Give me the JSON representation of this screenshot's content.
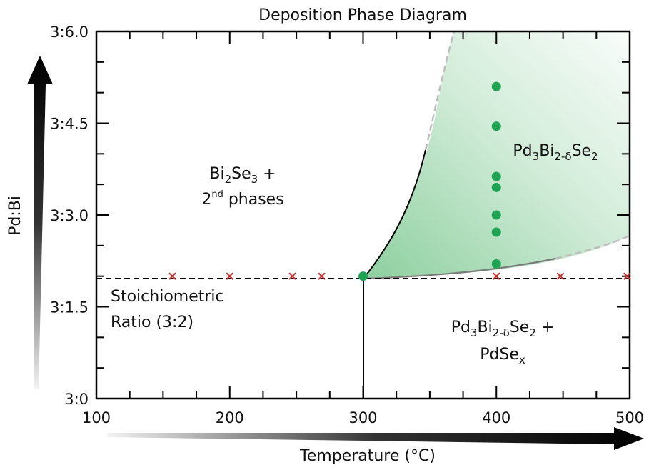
{
  "chart_data": {
    "type": "scatter",
    "title": "Deposition Phase Diagram",
    "xlabel": "Temperature (°C)",
    "ylabel": "Pd:Bi",
    "xlim": [
      100,
      500
    ],
    "ylim": [
      0,
      6
    ],
    "x_ticks": [
      100,
      200,
      300,
      400,
      500
    ],
    "y_ticks": [
      {
        "value": 0,
        "label": "3:0"
      },
      {
        "value": 1.5,
        "label": "3:1.5"
      },
      {
        "value": 3.0,
        "label": "3:3.0"
      },
      {
        "value": 4.5,
        "label": "3:4.5"
      },
      {
        "value": 6.0,
        "label": "3:6.0"
      }
    ],
    "stoichiometric_y": 2.0,
    "phase_boundary_x": 300,
    "series": [
      {
        "marker": "circle",
        "color": "#1ea554",
        "points": [
          {
            "x": 300,
            "y": 2.0
          },
          {
            "x": 400,
            "y": 2.2
          },
          {
            "x": 400,
            "y": 2.72
          },
          {
            "x": 400,
            "y": 3.0
          },
          {
            "x": 400,
            "y": 3.45
          },
          {
            "x": 400,
            "y": 3.63
          },
          {
            "x": 400,
            "y": 4.45
          },
          {
            "x": 400,
            "y": 5.1
          }
        ]
      },
      {
        "marker": "cross",
        "color": "#d02a2a",
        "points": [
          {
            "x": 157,
            "y": 2.0
          },
          {
            "x": 200,
            "y": 2.0
          },
          {
            "x": 247,
            "y": 2.0
          },
          {
            "x": 269,
            "y": 2.0
          },
          {
            "x": 400,
            "y": 2.0
          },
          {
            "x": 448,
            "y": 2.0
          },
          {
            "x": 498,
            "y": 2.0
          }
        ]
      }
    ],
    "regions": {
      "upper_left": {
        "line1": {
          "base": "Bi",
          "sub1": "2",
          "mid": "Se",
          "sub2": "3",
          "tail": " +"
        },
        "line2": {
          "sup_base": "2",
          "sup": "nd",
          "rest": " phases"
        }
      },
      "stoich_label": {
        "line1": "Stoichiometric",
        "line2": "Ratio (3:2)"
      },
      "green": {
        "p1": "Pd",
        "s1": "3",
        "p2": "Bi",
        "s2": "2-δ",
        "p3": "Se",
        "s3": "2"
      },
      "lower_right": {
        "line1": {
          "p1": "Pd",
          "s1": "3",
          "p2": "Bi",
          "s2": "2-δ",
          "p3": "Se",
          "s3": "2",
          "tail": " +"
        },
        "line2": {
          "base": "PdSe",
          "sub": "x"
        }
      }
    },
    "colors": {
      "green_region": "#2fa84f",
      "green_marker": "#1ea554",
      "red_marker": "#d02a2a",
      "frame": "#000000"
    }
  }
}
